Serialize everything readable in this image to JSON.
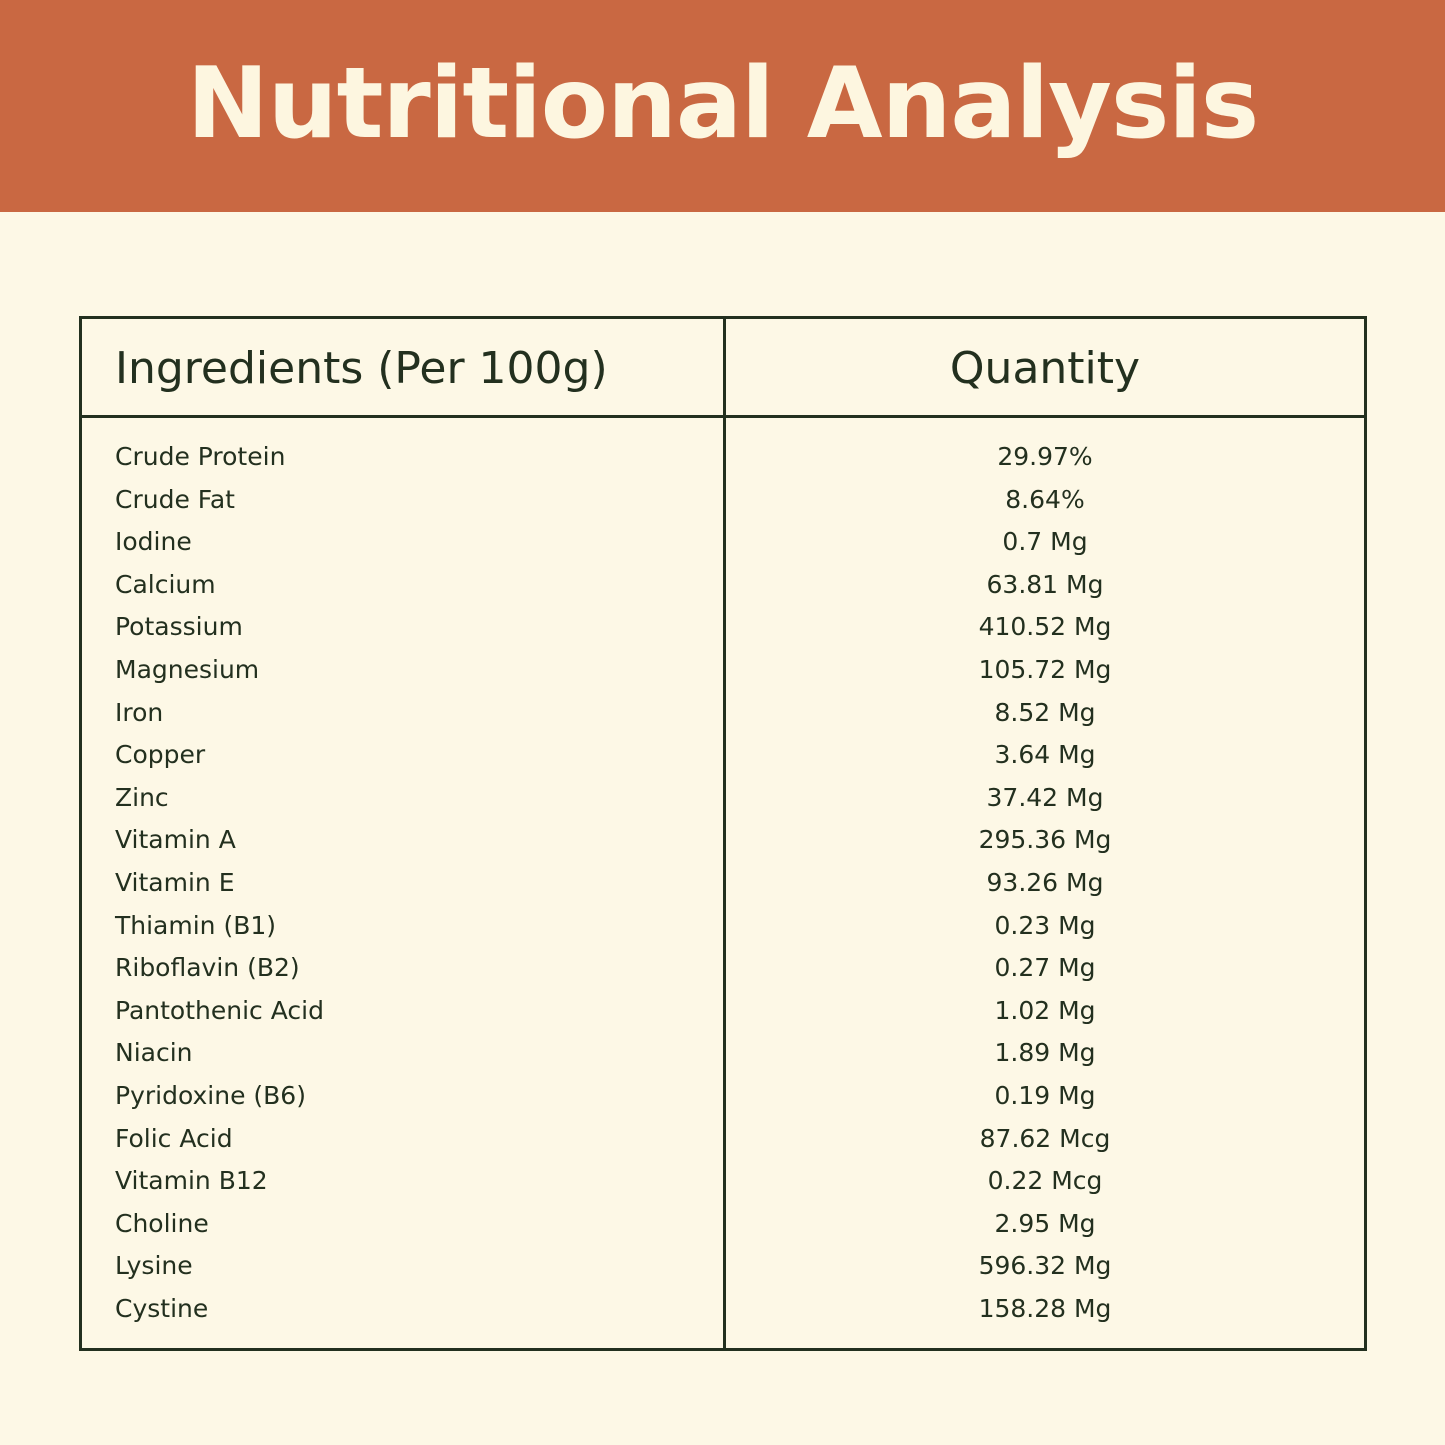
{
  "title": "Nutritional Analysis",
  "table": {
    "headers": {
      "ingredients": "Ingredients (Per 100g)",
      "quantity": "Quantity"
    },
    "rows": [
      {
        "name": "Crude Protein",
        "quantity": "29.97%"
      },
      {
        "name": "Crude Fat",
        "quantity": "8.64%"
      },
      {
        "name": "Iodine",
        "quantity": "0.7 Mg"
      },
      {
        "name": "Calcium",
        "quantity": "63.81 Mg"
      },
      {
        "name": "Potassium",
        "quantity": "410.52 Mg"
      },
      {
        "name": "Magnesium",
        "quantity": "105.72 Mg"
      },
      {
        "name": "Iron",
        "quantity": "8.52 Mg"
      },
      {
        "name": "Copper",
        "quantity": "3.64 Mg"
      },
      {
        "name": "Zinc",
        "quantity": "37.42 Mg"
      },
      {
        "name": "Vitamin A",
        "quantity": "295.36 Mg"
      },
      {
        "name": "Vitamin E",
        "quantity": "93.26 Mg"
      },
      {
        "name": "Thiamin (B1)",
        "quantity": "0.23 Mg"
      },
      {
        "name": "Riboflavin (B2)",
        "quantity": "0.27 Mg"
      },
      {
        "name": "Pantothenic Acid",
        "quantity": "1.02 Mg"
      },
      {
        "name": "Niacin",
        "quantity": "1.89 Mg"
      },
      {
        "name": "Pyridoxine (B6)",
        "quantity": "0.19 Mg"
      },
      {
        "name": "Folic Acid",
        "quantity": "87.62 Mcg"
      },
      {
        "name": "Vitamin B12",
        "quantity": "0.22 Mcg"
      },
      {
        "name": "Choline",
        "quantity": "2.95 Mg"
      },
      {
        "name": "Lysine",
        "quantity": "596.32 Mg"
      },
      {
        "name": "Cystine",
        "quantity": "158.28 Mg"
      }
    ]
  },
  "colors": {
    "header_band": "#c96842",
    "title_text": "#fdf6e0",
    "background": "#fdf8e6",
    "ink": "#23301f"
  }
}
